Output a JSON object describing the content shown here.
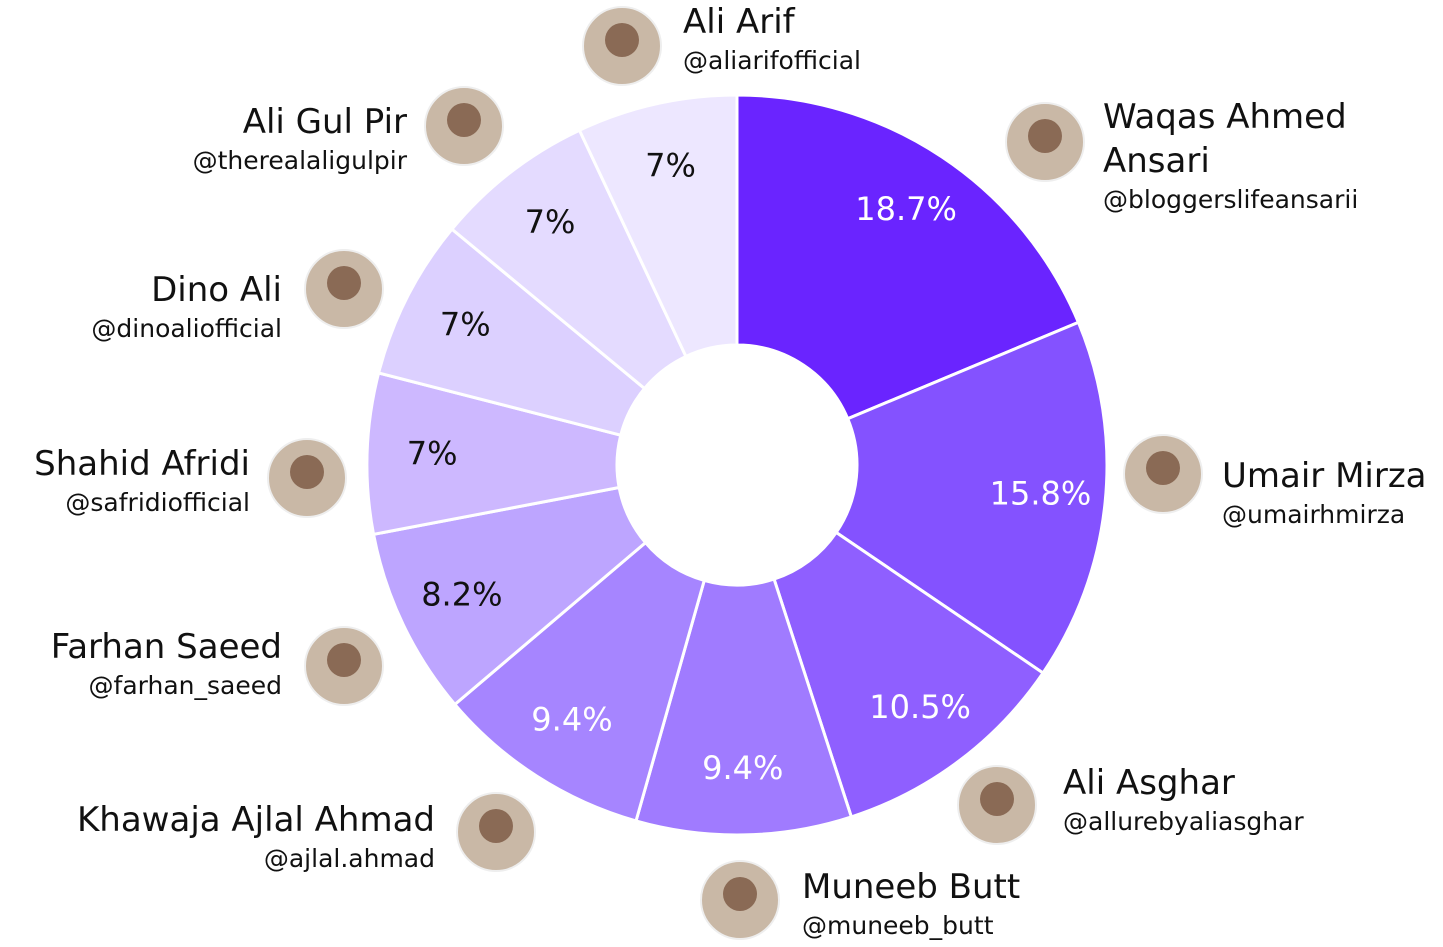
{
  "chart_data": {
    "type": "donut",
    "categories": [
      "Waqas Ahmed Ansari",
      "Umair Mirza",
      "Ali Asghar",
      "Muneeb Butt",
      "Khawaja Ajlal Ahmad",
      "Farhan Saeed",
      "Shahid Afridi",
      "Dino Ali",
      "Ali Gul Pir",
      "Ali Arif"
    ],
    "handles": [
      "@bloggerslifeansarii",
      "@umairhmirza",
      "@allurebyaliasghar",
      "@muneeb_butt",
      "@ajlal.ahmad",
      "@farhan_saeed",
      "@safridiofficial",
      "@dinoaliofficial",
      "@therealaligulpir",
      "@aliarifofficial"
    ],
    "values": [
      18.7,
      15.8,
      10.5,
      9.4,
      9.4,
      8.2,
      7,
      7,
      7,
      7
    ],
    "value_labels": [
      "18.7%",
      "15.8%",
      "10.5%",
      "9.4%",
      "9.4%",
      "8.2%",
      "7%",
      "7%",
      "7%",
      "7%"
    ],
    "colors": [
      "#6a24ff",
      "#8452ff",
      "#8f5fff",
      "#a07bff",
      "#a685ff",
      "#bda5ff",
      "#cdb8ff",
      "#dcd0ff",
      "#e4dbff",
      "#ede7ff"
    ]
  }
}
